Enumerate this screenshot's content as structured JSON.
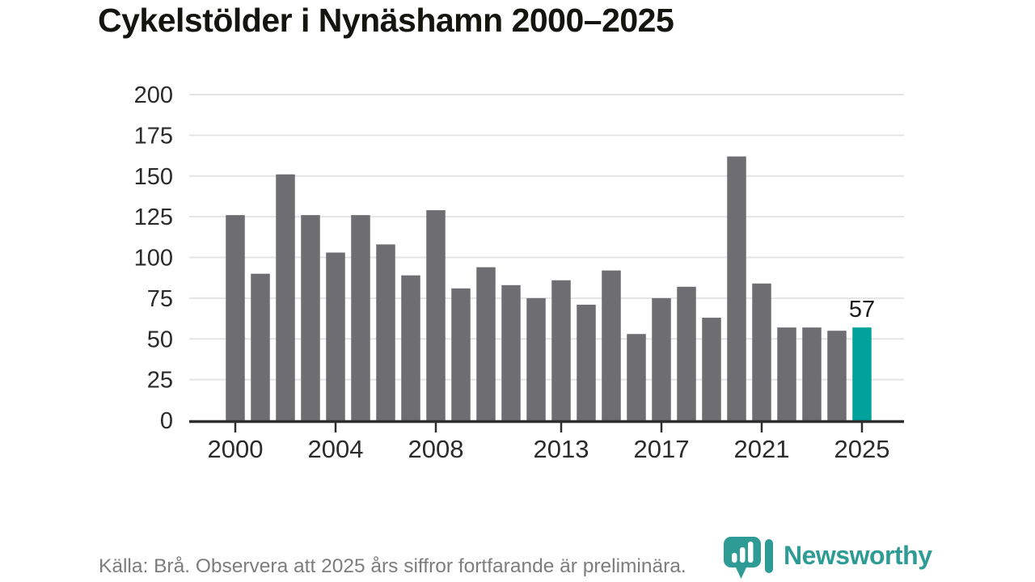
{
  "title": "Cykelstölder i Nynäshamn 2000–2025",
  "footer": {
    "source_note": "Källa: Brå. Observera att 2025 års siffror fortfarande är preliminära."
  },
  "logo": {
    "brand": "Newsworthy"
  },
  "colors": {
    "bar": "#6e6d72",
    "highlight": "#00a29b",
    "grid": "#e4e4e6",
    "axis": "#2e2e2e",
    "tick_text": "#2b2b2b",
    "title_text": "#15150f",
    "value_label": "#1a1a1a",
    "muted_text": "#7d7d7d",
    "brand_teal": "#2e9c95"
  },
  "chart_data": {
    "type": "bar",
    "title": "Cykelstölder i Nynäshamn 2000–2025",
    "xlabel": "",
    "ylabel": "",
    "categories": [
      2000,
      2001,
      2002,
      2003,
      2004,
      2005,
      2006,
      2007,
      2008,
      2009,
      2010,
      2011,
      2012,
      2013,
      2014,
      2015,
      2016,
      2017,
      2018,
      2019,
      2020,
      2021,
      2022,
      2023,
      2024,
      2025
    ],
    "values": [
      126,
      90,
      151,
      126,
      103,
      126,
      108,
      89,
      129,
      81,
      94,
      83,
      75,
      86,
      71,
      92,
      53,
      75,
      82,
      63,
      162,
      84,
      57,
      57,
      55,
      57
    ],
    "highlight_index": 25,
    "highlight_label": "57",
    "y_ticks": [
      0,
      25,
      50,
      75,
      100,
      125,
      150,
      175,
      200
    ],
    "x_ticks": [
      2000,
      2004,
      2008,
      2013,
      2017,
      2021,
      2025
    ],
    "ylim": [
      0,
      200
    ],
    "grid": true,
    "legend": "none"
  }
}
